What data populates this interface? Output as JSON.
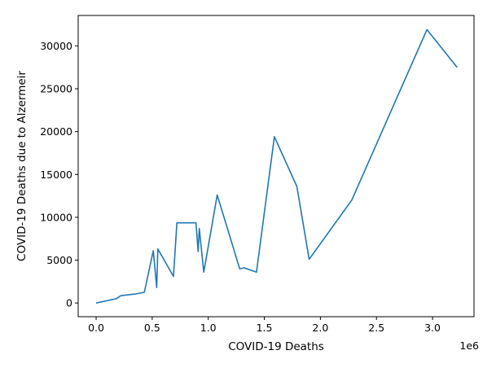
{
  "chart_data": {
    "type": "line",
    "title": "",
    "xlabel": "COVID-19 Deaths",
    "ylabel": "COVID-19 Deaths due to Alzermeir",
    "x_offset_label": "1e6",
    "xlim": [
      -0.16,
      3.37
    ],
    "ylim": [
      -1600,
      33550
    ],
    "xticks": [
      0.0,
      0.5,
      1.0,
      1.5,
      2.0,
      2.5,
      3.0
    ],
    "xtick_labels": [
      "0.0",
      "0.5",
      "1.0",
      "1.5",
      "2.0",
      "2.5",
      "3.0"
    ],
    "yticks": [
      0,
      5000,
      10000,
      15000,
      20000,
      25000,
      30000
    ],
    "ytick_labels": [
      "0",
      "5000",
      "10000",
      "15000",
      "20000",
      "25000",
      "30000"
    ],
    "grid": false,
    "color": "#1f77b4",
    "series": [
      {
        "x": [
          0.0,
          0.18,
          0.22,
          0.28,
          0.35,
          0.43,
          0.51,
          0.54,
          0.55,
          0.69,
          0.72,
          0.82,
          0.89,
          0.91,
          0.92,
          0.96,
          1.08,
          1.28,
          1.32,
          1.43,
          1.59,
          1.79,
          1.9,
          2.28,
          2.95,
          3.22
        ],
        "y": [
          0,
          500,
          850,
          950,
          1050,
          1250,
          6100,
          1800,
          6300,
          3100,
          9350,
          9350,
          9350,
          6000,
          8700,
          3600,
          12600,
          4000,
          4100,
          3600,
          19400,
          13600,
          5100,
          12000,
          31900,
          27500
        ]
      }
    ]
  }
}
